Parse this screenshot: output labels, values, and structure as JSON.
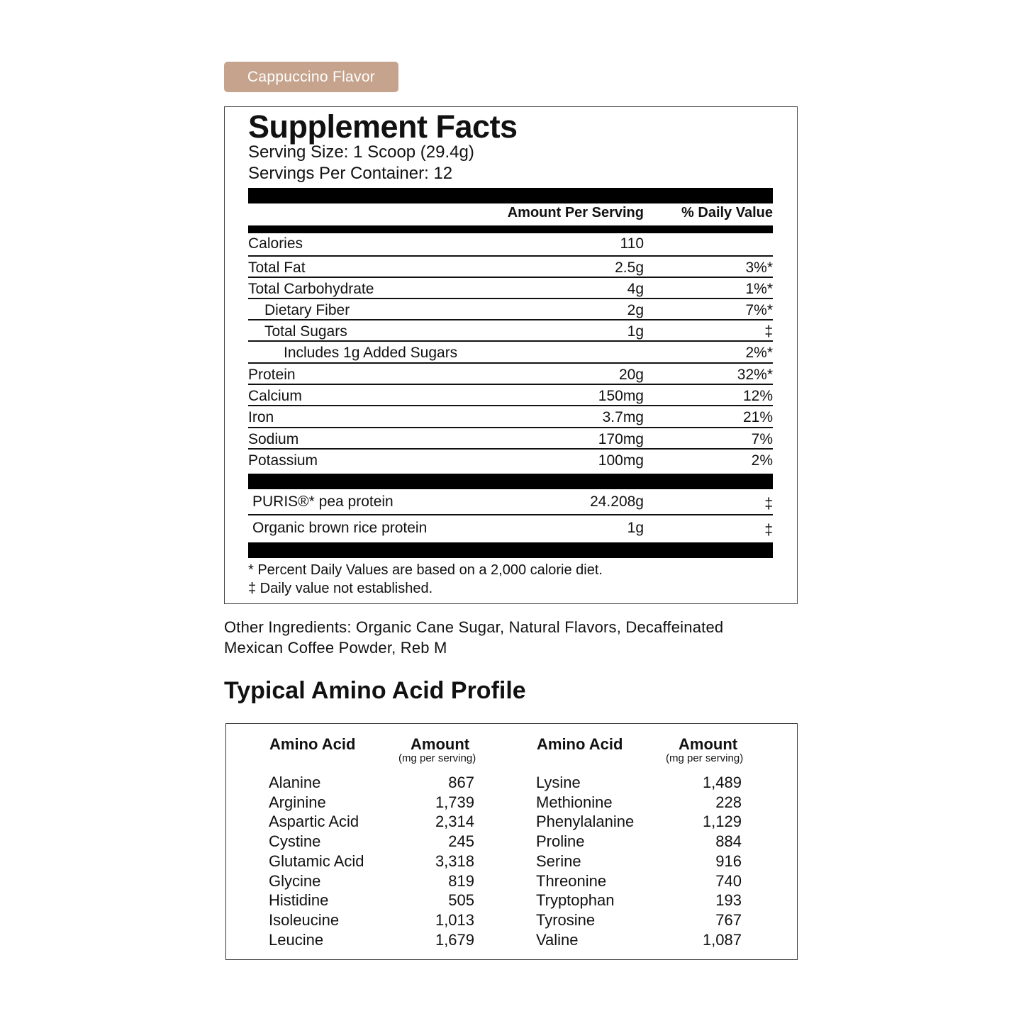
{
  "flavor_label": "Cappuccino Flavor",
  "facts": {
    "title": "Supplement Facts",
    "serving_size": "Serving Size: 1 Scoop (29.4g)",
    "servings_per_container": "Servings Per Container: 12",
    "header_amount": "Amount Per Serving",
    "header_dv": "% Daily Value",
    "rows": [
      {
        "name": "Calories",
        "amount": "110",
        "dv": "",
        "indent": 0
      },
      {
        "name": "Total Fat",
        "amount": "2.5g",
        "dv": "3%*",
        "indent": 0
      },
      {
        "name": "Total Carbohydrate",
        "amount": "4g",
        "dv": "1%*",
        "indent": 0
      },
      {
        "name": "Dietary Fiber",
        "amount": "2g",
        "dv": "7%*",
        "indent": 1
      },
      {
        "name": "Total Sugars",
        "amount": "1g",
        "dv": "‡",
        "indent": 1
      },
      {
        "name": "Includes 1g Added Sugars",
        "amount": "",
        "dv": "2%*",
        "indent": 2
      },
      {
        "name": "Protein",
        "amount": "20g",
        "dv": "32%*",
        "indent": 0
      },
      {
        "name": "Calcium",
        "amount": "150mg",
        "dv": "12%",
        "indent": 0
      },
      {
        "name": "Iron",
        "amount": "3.7mg",
        "dv": "21%",
        "indent": 0
      },
      {
        "name": "Sodium",
        "amount": "170mg",
        "dv": "7%",
        "indent": 0
      },
      {
        "name": "Potassium",
        "amount": "100mg",
        "dv": "2%",
        "indent": 0
      }
    ],
    "blend": [
      {
        "name": "PURIS®* pea protein",
        "amount": "24.208g",
        "dv": "‡"
      },
      {
        "name": "Organic brown rice protein",
        "amount": "1g",
        "dv": "‡"
      }
    ],
    "footnote_1": "* Percent Daily Values are based on a 2,000 calorie diet.",
    "footnote_2": "‡ Daily value not established."
  },
  "other_ingredients": "Other Ingredients: Organic Cane Sugar, Natural Flavors, Decaffeinated Mexican Coffee Powder, Reb M",
  "amino": {
    "title": "Typical Amino Acid Profile",
    "col_name": "Amino Acid",
    "col_amount": "Amount",
    "col_unit": "(mg per serving)",
    "left": [
      [
        "Alanine",
        "867"
      ],
      [
        "Arginine",
        "1,739"
      ],
      [
        "Aspartic Acid",
        "2,314"
      ],
      [
        "Cystine",
        "245"
      ],
      [
        "Glutamic Acid",
        "3,318"
      ],
      [
        "Glycine",
        "819"
      ],
      [
        "Histidine",
        "505"
      ],
      [
        "Isoleucine",
        "1,013"
      ],
      [
        "Leucine",
        "1,679"
      ]
    ],
    "right": [
      [
        "Lysine",
        "1,489"
      ],
      [
        "Methionine",
        "228"
      ],
      [
        "Phenylalanine",
        "1,129"
      ],
      [
        "Proline",
        "884"
      ],
      [
        "Serine",
        "916"
      ],
      [
        "Threonine",
        "740"
      ],
      [
        "Tryptophan",
        "193"
      ],
      [
        "Tyrosine",
        "767"
      ],
      [
        "Valine",
        "1,087"
      ]
    ]
  }
}
